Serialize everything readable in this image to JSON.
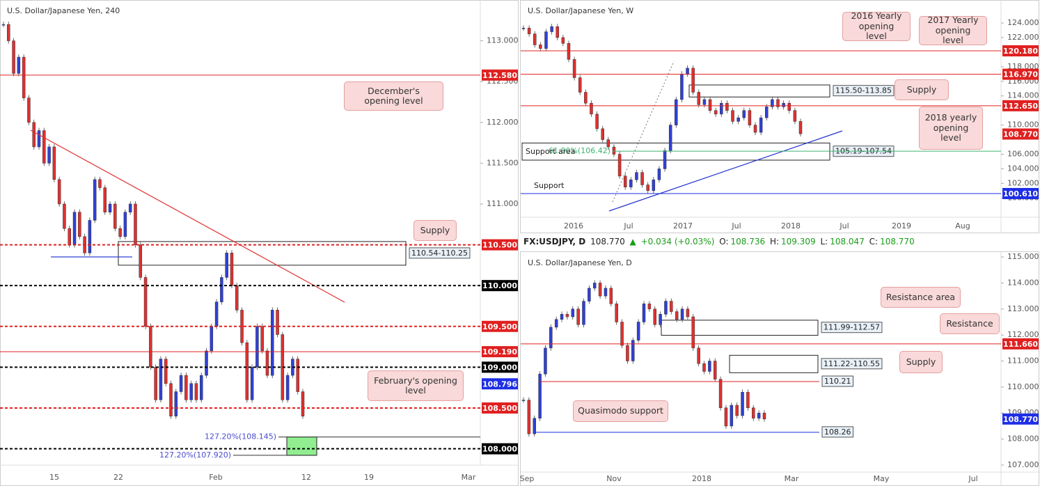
{
  "info": {
    "symbol": "FX:USDJPY, D",
    "last": "108.770",
    "arrow": "▲",
    "change": "+0.034 (+0.03%)",
    "o_label": "O:",
    "o": "108.736",
    "h_label": "H:",
    "h": "109.309",
    "l_label": "L:",
    "l": "108.047",
    "c_label": "C:",
    "c": "108.770"
  },
  "chart_data": [
    {
      "type": "candlestick",
      "title": "U.S. Dollar/Japanese Yen, 240",
      "up_color": "#3040d8",
      "down_color": "#e03030",
      "ylim": [
        107.8,
        113.5
      ],
      "yticks": [
        {
          "value": 113,
          "label": "113.000"
        },
        {
          "value": 112.5,
          "label": "112.500"
        },
        {
          "value": 112,
          "label": "112.000"
        },
        {
          "value": 111.5,
          "label": "111.500"
        },
        {
          "value": 111,
          "label": "111.000"
        }
      ],
      "xticks": [
        "15",
        "22",
        "Feb",
        "12",
        "19",
        "Mar"
      ],
      "closes": [
        113.2,
        113.0,
        112.6,
        112.8,
        112.3,
        112.0,
        111.7,
        111.9,
        111.5,
        111.7,
        111.3,
        111.0,
        110.7,
        110.5,
        110.9,
        110.6,
        110.4,
        110.8,
        111.3,
        111.2,
        110.9,
        111.0,
        110.7,
        110.6,
        110.9,
        111.0,
        110.5,
        110.1,
        109.5,
        109.0,
        108.6,
        109.1,
        108.8,
        108.4,
        108.7,
        108.9,
        108.6,
        108.8,
        108.6,
        108.9,
        109.2,
        109.5,
        109.8,
        110.1,
        110.4,
        110.0,
        109.7,
        109.3,
        108.6,
        109.0,
        109.5,
        109.2,
        108.9,
        109.7,
        109.4,
        108.6,
        108.9,
        109.1,
        108.7,
        108.4
      ],
      "levels": [
        {
          "value": 112.58,
          "label": "112.580",
          "color": "#e02020",
          "line": "solid"
        },
        {
          "value": 110.5,
          "label": "110.500",
          "color": "#e02020",
          "line": "dashed"
        },
        {
          "value": 110,
          "label": "110.000",
          "color": "#000000",
          "line": "dashed"
        },
        {
          "value": 109.5,
          "label": "109.500",
          "color": "#e02020",
          "line": "dashed"
        },
        {
          "value": 109.19,
          "label": "109.190",
          "color": "#e02020",
          "line": "solid"
        },
        {
          "value": 109,
          "label": "109.000",
          "color": "#000000",
          "line": "dashed"
        },
        {
          "value": 108.796,
          "label": "108.796",
          "color": "#1e2ee6",
          "line": "none"
        },
        {
          "value": 108.5,
          "label": "108.500",
          "color": "#e02020",
          "line": "dashed"
        },
        {
          "value": 108,
          "label": "108.000",
          "color": "#000000",
          "line": "dashed"
        }
      ],
      "zones": [
        {
          "range": [
            110.54,
            110.25
          ],
          "label": "110.54-110.25"
        }
      ],
      "fibs": [
        {
          "value": 108.145,
          "label": "127.20%(108.145)",
          "color": "#4a4ad0"
        },
        {
          "value": 107.92,
          "label": "127.20%(107.920)",
          "color": "#4a4ad0"
        }
      ],
      "target": {
        "range": [
          108.145,
          107.92
        ],
        "color": "#90ee90"
      },
      "callouts": [
        "December's opening level",
        "Supply",
        "February's opening level"
      ]
    },
    {
      "type": "candlestick",
      "title": "U.S. Dollar/Japanese Yen, W",
      "up_color": "#3040d8",
      "down_color": "#e03030",
      "ylim": [
        97.36,
        127.15
      ],
      "yticks": [
        {
          "value": 124,
          "label": "124.000"
        },
        {
          "value": 122,
          "label": "122.000"
        },
        {
          "value": 118,
          "label": "118.000"
        },
        {
          "value": 116,
          "label": "116.000"
        },
        {
          "value": 114,
          "label": "114.000"
        },
        {
          "value": 110,
          "label": "110.000"
        },
        {
          "value": 106,
          "label": "106.000"
        },
        {
          "value": 104,
          "label": "104.000"
        },
        {
          "value": 102,
          "label": "102.000"
        },
        {
          "value": 100,
          "label": "100.000"
        }
      ],
      "xticks": [
        "2016",
        "Jul",
        "2017",
        "Jul",
        "2018",
        "Jul",
        "2019",
        "Aug"
      ],
      "closes": [
        123.3,
        122.5,
        121.0,
        120.5,
        122.8,
        123.5,
        122.0,
        121.2,
        119.0,
        116.5,
        114.5,
        113.0,
        111.5,
        109.5,
        108.0,
        107.0,
        106.0,
        103.0,
        101.5,
        102.5,
        103.5,
        101.8,
        101.0,
        102.5,
        104.0,
        106.5,
        110.0,
        113.5,
        117.0,
        117.8,
        114.5,
        112.8,
        113.5,
        112.0,
        111.5,
        113.0,
        112.0,
        110.5,
        111.0,
        112.0,
        110.0,
        109.0,
        111.0,
        112.5,
        113.5,
        112.5,
        113.0,
        112.0,
        110.5,
        108.8
      ],
      "levels": [
        {
          "value": 120.18,
          "label": "120.180",
          "color": "#e02020",
          "line": "solid"
        },
        {
          "value": 116.97,
          "label": "116.970",
          "color": "#e02020",
          "line": "solid"
        },
        {
          "value": 112.65,
          "label": "112.650",
          "color": "#e02020",
          "line": "solid"
        },
        {
          "value": 108.77,
          "label": "108.770",
          "color": "#e02020",
          "line": "none"
        },
        {
          "value": 100.61,
          "label": "100.610",
          "color": "#1e2ee6",
          "line": "solid"
        }
      ],
      "zones": [
        {
          "range": [
            115.5,
            113.85
          ],
          "label": "115.50-113.85"
        },
        {
          "range": [
            105.19,
            107.54
          ],
          "label": "105.19-107.54"
        }
      ],
      "fibs": [
        {
          "value": 106.42,
          "label": "61.80%(106.42)",
          "color": "#3cb371"
        }
      ],
      "texts": [
        "Support area",
        "Support"
      ],
      "callouts": [
        "2016 Yearly opening level",
        "2017 Yearly opening level",
        "Supply",
        "2018 yearly opening level"
      ]
    },
    {
      "type": "candlestick",
      "title": "U.S. Dollar/Japanese Yen, D",
      "up_color": "#3040d8",
      "down_color": "#e03030",
      "ylim": [
        106.73,
        115.19
      ],
      "yticks": [
        {
          "value": 115,
          "label": "115.000"
        },
        {
          "value": 114,
          "label": "114.000"
        },
        {
          "value": 113,
          "label": "113.000"
        },
        {
          "value": 112,
          "label": "112.000"
        },
        {
          "value": 111,
          "label": "111.000"
        },
        {
          "value": 110,
          "label": "110.000"
        },
        {
          "value": 109,
          "label": "109.000"
        },
        {
          "value": 108,
          "label": "108.000"
        },
        {
          "value": 107,
          "label": "107.000"
        }
      ],
      "xticks": [
        "Sep",
        "Nov",
        "2018",
        "Mar",
        "May",
        "Jul"
      ],
      "closes": [
        109.5,
        108.2,
        108.8,
        110.5,
        111.5,
        112.3,
        112.6,
        112.8,
        112.7,
        113.0,
        112.4,
        113.3,
        113.8,
        114.0,
        113.5,
        113.8,
        113.2,
        112.5,
        111.6,
        111.0,
        111.8,
        112.5,
        113.2,
        113.0,
        112.4,
        112.8,
        113.3,
        112.9,
        112.6,
        113.0,
        112.7,
        111.5,
        110.9,
        110.6,
        111.0,
        110.3,
        109.2,
        108.5,
        109.3,
        108.9,
        109.8,
        109.2,
        108.8,
        109.0,
        108.77
      ],
      "levels": [
        {
          "value": 111.66,
          "label": "111.660",
          "color": "#e02020",
          "line": "solid"
        },
        {
          "value": 108.77,
          "label": "108.770",
          "color": "#1e2ee6",
          "line": "none"
        }
      ],
      "marks": [
        {
          "value": 110.21,
          "label": "110.21",
          "color": "#e02020"
        },
        {
          "value": 108.26,
          "label": "108.26",
          "color": "#1e2ee6"
        }
      ],
      "zones": [
        {
          "range": [
            111.99,
            112.57
          ],
          "label": "111.99-112.57"
        },
        {
          "range": [
            111.22,
            110.55
          ],
          "label": "111.22-110.55"
        }
      ],
      "callouts": [
        "Resistance area",
        "Resistance",
        "Supply",
        "Quasimodo support"
      ]
    }
  ]
}
